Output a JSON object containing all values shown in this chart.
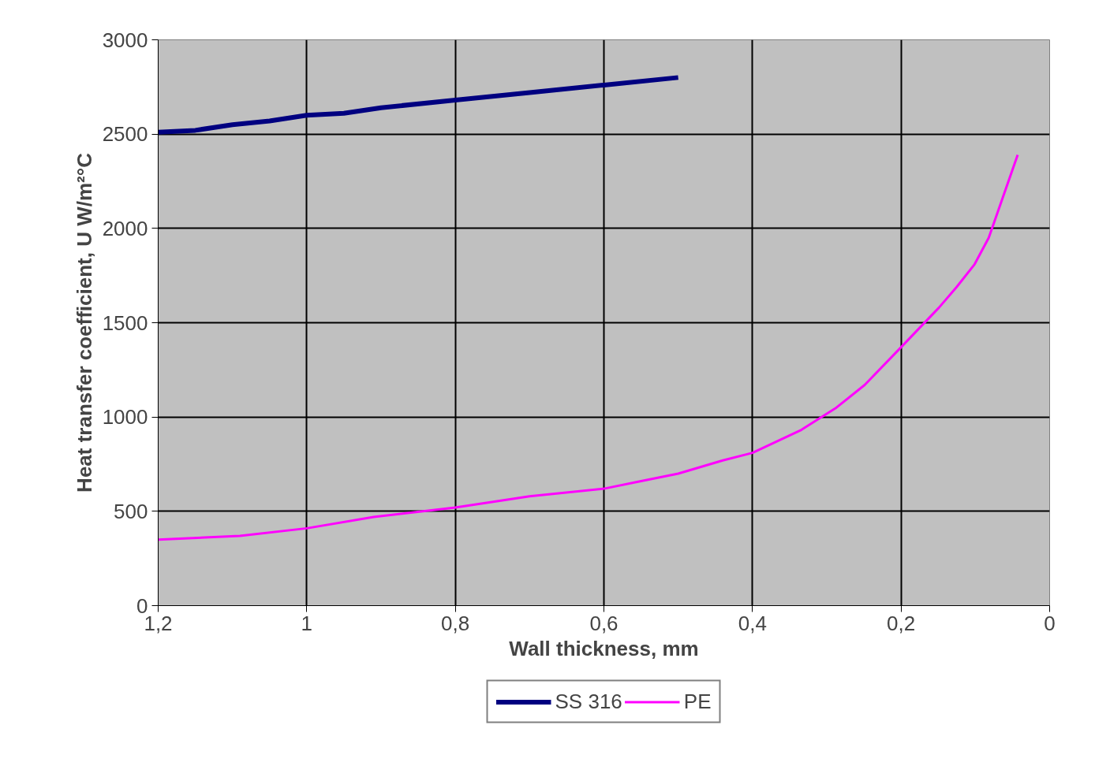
{
  "chart_data": {
    "type": "line",
    "xlabel": "Wall thickness, mm",
    "ylabel": "Heat transfer coefficient, U W/m²°C",
    "xlim": [
      1.2,
      0
    ],
    "ylim": [
      0,
      3000
    ],
    "xticks": [
      {
        "value": 1.2,
        "label": "1,2"
      },
      1,
      {
        "value": 0.8,
        "label": "0,8"
      },
      {
        "value": 0.6,
        "label": "0,6"
      },
      {
        "value": 0.4,
        "label": "0,4"
      },
      {
        "value": 0.2,
        "label": "0,2"
      },
      0
    ],
    "yticks": [
      0,
      500,
      1000,
      1500,
      2000,
      2500,
      3000
    ],
    "grid": true,
    "legend": "bottom",
    "marker": "none",
    "line_style": "solid",
    "series": [
      {
        "name": "SS 316",
        "color": "#000080",
        "x": [
          1.2,
          1.15,
          1.1,
          1.05,
          1.0,
          0.95,
          0.9,
          0.8,
          0.7,
          0.6,
          0.5
        ],
        "values": [
          2510,
          2520,
          2550,
          2570,
          2600,
          2610,
          2640,
          2680,
          2720,
          2760,
          2800
        ]
      },
      {
        "name": "PE",
        "color": "#ff00ff",
        "x": [
          1.2,
          1.09,
          1.0,
          0.91,
          0.8,
          0.7,
          0.6,
          0.55,
          0.5,
          0.44,
          0.4,
          0.335,
          0.287,
          0.249,
          0.2,
          0.149,
          0.125,
          0.101,
          0.082,
          0.043
        ],
        "values": [
          350,
          370,
          410,
          470,
          520,
          580,
          620,
          660,
          700,
          770,
          810,
          930,
          1050,
          1170,
          1370,
          1580,
          1690,
          1810,
          1950,
          2390
        ]
      }
    ]
  }
}
